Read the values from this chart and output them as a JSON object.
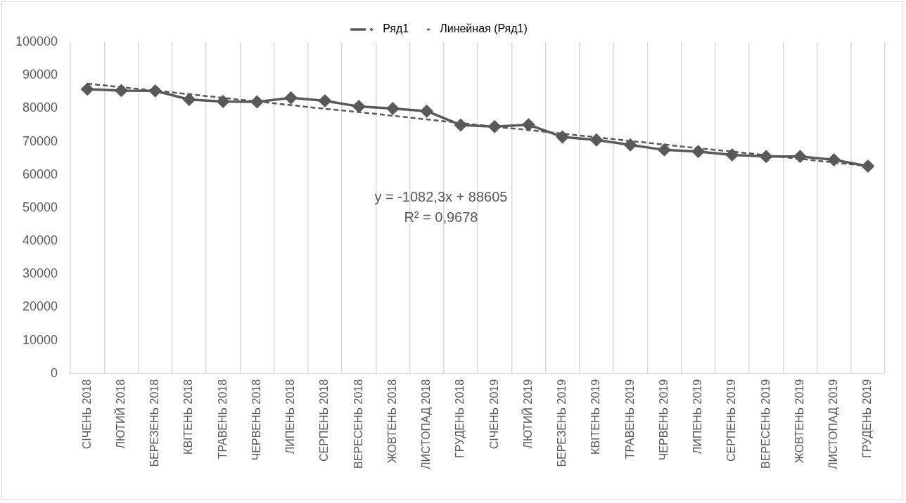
{
  "chart_data": {
    "type": "line",
    "categories": [
      "СІЧЕНЬ 2018",
      "ЛЮТИЙ 2018",
      "БЕРЕЗЕНЬ 2018",
      "КВІТЕНЬ 2018",
      "ТРАВЕНЬ 2018",
      "ЧЕРВЕНЬ 2018",
      "ЛИПЕНЬ 2018",
      "СЕРПЕНЬ 2018",
      "ВЕРЕСЕНЬ 2018",
      "ЖОВТЕНЬ 2018",
      "ЛИСТОПАД 2018",
      "ГРУДЕНЬ 2018",
      "СІЧЕНЬ 2019",
      "ЛЮТИЙ 2019",
      "БЕРЕЗЕНЬ 2019",
      "КВІТЕНЬ 2019",
      "ТРАВЕНЬ 2019",
      "ЧЕРВЕНЬ 2019",
      "ЛИПЕНЬ 2019",
      "СЕРПЕНЬ 2019",
      "ВЕРЕСЕНЬ 2019",
      "ЖОВТЕНЬ 2019",
      "ЛИСТОПАД 2019",
      "ГРУДЕНЬ 2019"
    ],
    "series": [
      {
        "name": "Ряд1",
        "color": "#595959",
        "marker": "diamond",
        "line_style": "solid",
        "values": [
          85800,
          85400,
          85300,
          82700,
          82100,
          82000,
          83200,
          82300,
          80600,
          80000,
          79200,
          75000,
          74500,
          75100,
          71400,
          70500,
          69000,
          67500,
          67000,
          66000,
          65500,
          65500,
          64500,
          62600
        ]
      },
      {
        "name": "Линейная (Ряд1)",
        "type": "line",
        "color": "#595959",
        "marker": "none",
        "line_style": "dashed",
        "values": [
          87500,
          86400,
          85400,
          84300,
          83200,
          82100,
          81000,
          79900,
          78900,
          77800,
          76700,
          75600,
          74500,
          73500,
          72400,
          71300,
          70200,
          69100,
          68000,
          67000,
          65900,
          64800,
          63700,
          62600
        ]
      }
    ],
    "ylim": [
      0,
      100000
    ],
    "yticks": [
      0,
      10000,
      20000,
      30000,
      40000,
      50000,
      60000,
      70000,
      80000,
      90000,
      100000
    ],
    "grid": "x",
    "legend": "top",
    "annotations": [
      "y = -1082,3x + 88605",
      "R² = 0,9678"
    ]
  }
}
